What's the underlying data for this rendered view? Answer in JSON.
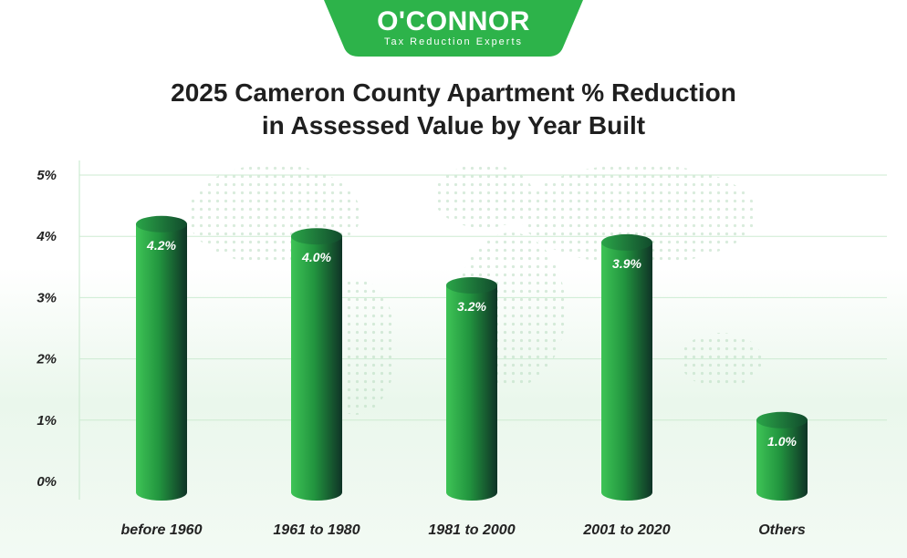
{
  "logo": {
    "name": "O'CONNOR",
    "tagline": "Tax Reduction Experts"
  },
  "colors": {
    "brand_green": "#2db34a",
    "bar_light": "#3ec456",
    "bar_dark": "#0f3326",
    "grid": "#cdebd2"
  },
  "chart_data": {
    "type": "bar",
    "title": "2025 Cameron County Apartment % Reduction in Assessed Value by Year Built",
    "title_lines": [
      "2025 Cameron County Apartment % Reduction",
      "in Assessed Value by Year Built"
    ],
    "categories": [
      "before 1960",
      "1961 to 1980",
      "1981 to 2000",
      "2001 to 2020",
      "Others"
    ],
    "values": [
      4.2,
      4.0,
      3.2,
      3.9,
      1.0
    ],
    "data_labels": [
      "4.2%",
      "4.0%",
      "3.2%",
      "3.9%",
      "1.0%"
    ],
    "yticks": [
      "0%",
      "1%",
      "2%",
      "3%",
      "4%",
      "5%"
    ],
    "ylim": [
      0,
      5
    ],
    "xlabel": "",
    "ylabel": "",
    "grid": true,
    "bar_style": "3d-cylinder"
  }
}
